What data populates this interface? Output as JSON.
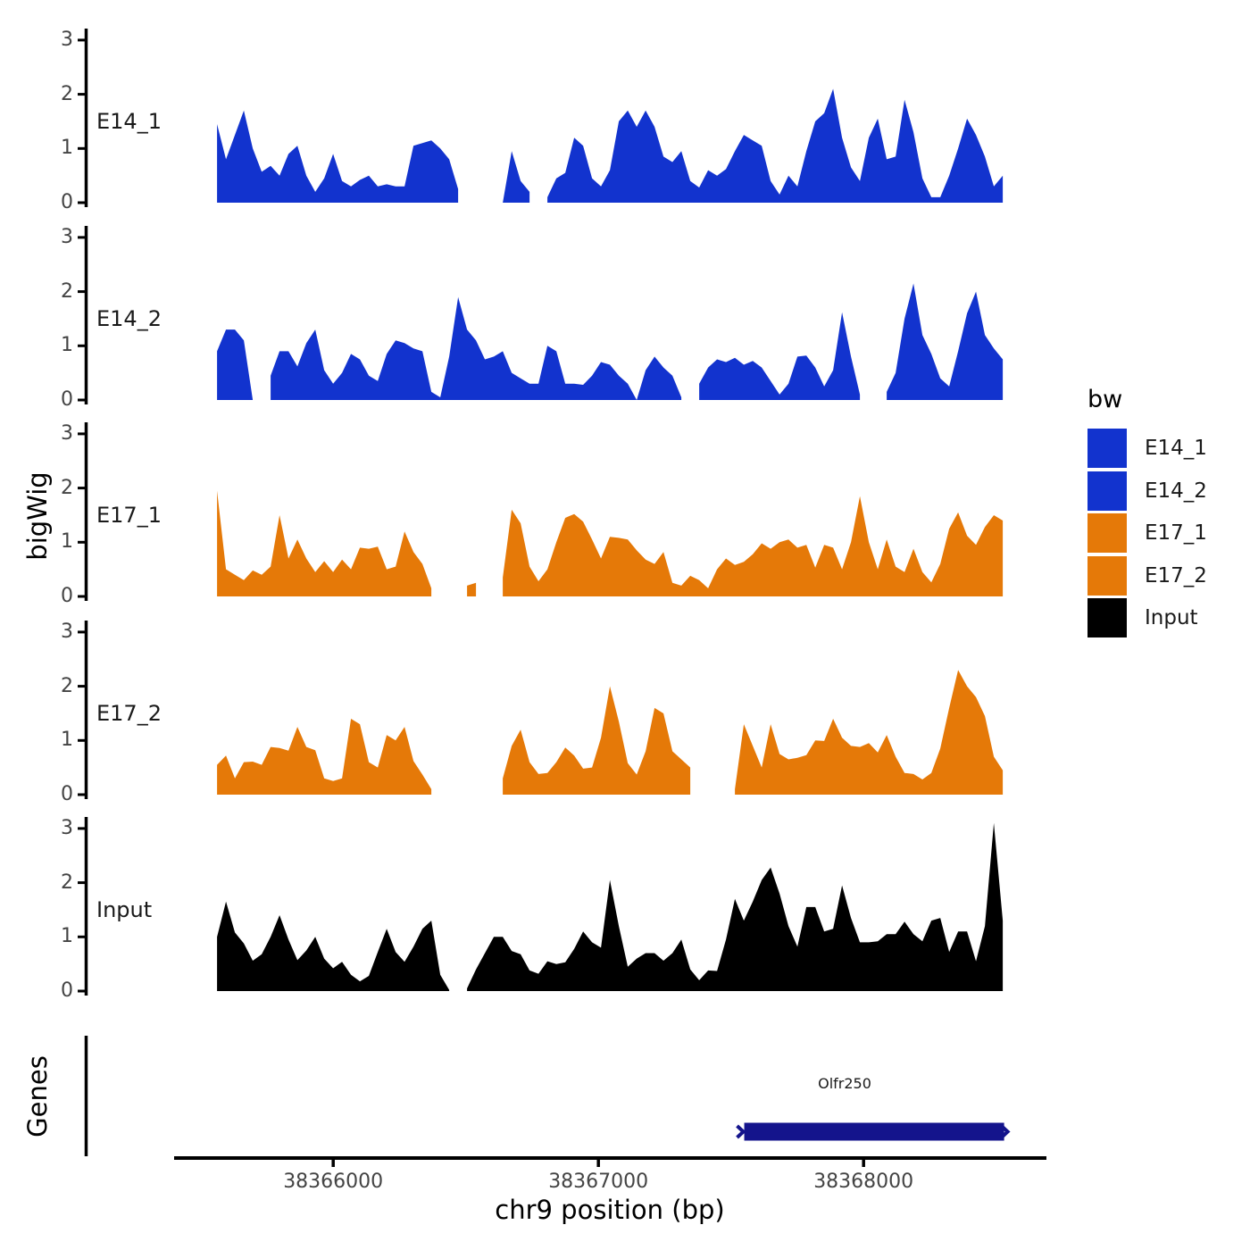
{
  "chart_data": {
    "type": "area",
    "title": "",
    "xlabel": "chr9 position (bp)",
    "ylabel": "bigWig",
    "chromosome": "chr9",
    "x_ticks": [
      38366000,
      38367000,
      38368000
    ],
    "x_range_bp": [
      38365400,
      38368690
    ],
    "track_ylim": [
      0,
      3
    ],
    "track_yticks": [
      "3",
      "2",
      "1",
      "0"
    ],
    "grid": "off",
    "sampling": {
      "start_bp": 38365562,
      "step_bp": 33.67,
      "note": "null = no coverage (gap)"
    },
    "style": {
      "background": "#ffffff",
      "axis_line_color": "#000000",
      "tick_text_color": "#444444",
      "blue": "#1233CE",
      "orange": "#E57908",
      "black": "#000000",
      "gene_navy": "#14148C"
    },
    "tracks": [
      {
        "id": "E14_1",
        "label": "E14_1",
        "color": "#1233CE",
        "values": [
          1.45,
          0.8,
          1.25,
          1.7,
          1.0,
          0.57,
          0.68,
          0.5,
          0.9,
          1.05,
          0.5,
          0.2,
          0.45,
          0.9,
          0.4,
          0.3,
          0.42,
          0.5,
          0.3,
          0.34,
          0.3,
          0.3,
          1.05,
          1.1,
          1.15,
          1.0,
          0.8,
          0.25,
          null,
          null,
          null,
          null,
          0,
          0.95,
          0.4,
          0.2,
          null,
          0.1,
          0.45,
          0.55,
          1.2,
          1.05,
          0.45,
          0.3,
          0.6,
          1.5,
          1.7,
          1.4,
          1.7,
          1.4,
          0.85,
          0.75,
          0.95,
          0.4,
          0.28,
          0.6,
          0.5,
          0.62,
          0.95,
          1.25,
          1.15,
          1.05,
          0.4,
          0.15,
          0.5,
          0.3,
          0.95,
          1.5,
          1.65,
          2.1,
          1.2,
          0.65,
          0.4,
          1.2,
          1.55,
          0.8,
          0.85,
          1.9,
          1.3,
          0.45,
          0.1,
          0.1,
          0.5,
          1.0,
          1.55,
          1.25,
          0.85,
          0.3,
          0.5
        ]
      },
      {
        "id": "E14_2",
        "label": "E14_2",
        "color": "#1233CE",
        "values": [
          0.9,
          1.3,
          1.3,
          1.1,
          0,
          null,
          0.45,
          0.9,
          0.9,
          0.62,
          1.05,
          1.3,
          0.55,
          0.3,
          0.5,
          0.85,
          0.75,
          0.45,
          0.35,
          0.85,
          1.1,
          1.05,
          0.95,
          0.9,
          0.15,
          0.05,
          0.8,
          1.9,
          1.3,
          1.1,
          0.75,
          0.8,
          0.9,
          0.5,
          0.4,
          0.3,
          0.3,
          1.0,
          0.9,
          0.3,
          0.3,
          0.28,
          0.45,
          0.7,
          0.65,
          0.45,
          0.3,
          0,
          0.55,
          0.8,
          0.6,
          0.45,
          0.05,
          null,
          0.3,
          0.6,
          0.75,
          0.7,
          0.78,
          0.65,
          0.72,
          0.6,
          0.35,
          0.1,
          0.3,
          0.8,
          0.82,
          0.6,
          0.25,
          0.55,
          1.62,
          0.8,
          0.1,
          null,
          null,
          0.15,
          0.5,
          1.5,
          2.15,
          1.2,
          0.85,
          0.4,
          0.25,
          0.9,
          1.6,
          2.0,
          1.2,
          0.95,
          0.75
        ]
      },
      {
        "id": "E17_1",
        "label": "E17_1",
        "color": "#E57908",
        "values": [
          1.95,
          0.5,
          0.4,
          0.3,
          0.48,
          0.4,
          0.55,
          1.5,
          0.7,
          1.05,
          0.7,
          0.45,
          0.65,
          0.45,
          0.68,
          0.5,
          0.9,
          0.88,
          0.92,
          0.5,
          0.55,
          1.2,
          0.82,
          0.6,
          0.15,
          null,
          null,
          null,
          0.2,
          0.25,
          null,
          null,
          0.35,
          1.6,
          1.35,
          0.55,
          0.28,
          0.5,
          1.0,
          1.45,
          1.52,
          1.38,
          1.05,
          0.7,
          1.1,
          1.08,
          1.05,
          0.85,
          0.68,
          0.6,
          0.82,
          0.25,
          0.2,
          0.38,
          0.3,
          0.15,
          0.5,
          0.7,
          0.58,
          0.64,
          0.78,
          0.98,
          0.88,
          1.0,
          1.05,
          0.9,
          0.95,
          0.53,
          0.95,
          0.9,
          0.5,
          1.0,
          1.85,
          1.0,
          0.5,
          1.05,
          0.55,
          0.45,
          0.88,
          0.45,
          0.26,
          0.6,
          1.25,
          1.55,
          1.12,
          0.95,
          1.28,
          1.5,
          1.4
        ]
      },
      {
        "id": "E17_2",
        "label": "E17_2",
        "color": "#E57908",
        "values": [
          0.55,
          0.72,
          0.3,
          0.6,
          0.61,
          0.55,
          0.88,
          0.86,
          0.81,
          1.25,
          0.88,
          0.82,
          0.3,
          0.25,
          0.3,
          1.4,
          1.3,
          0.6,
          0.5,
          1.1,
          1.0,
          1.25,
          0.62,
          0.37,
          0.1,
          null,
          null,
          null,
          null,
          null,
          null,
          null,
          0.3,
          0.9,
          1.2,
          0.6,
          0.38,
          0.4,
          0.6,
          0.87,
          0.72,
          0.48,
          0.5,
          1.05,
          2.0,
          1.35,
          0.58,
          0.37,
          0.8,
          1.6,
          1.5,
          0.8,
          0.65,
          0.5,
          null,
          null,
          null,
          null,
          0.1,
          1.3,
          0.9,
          0.5,
          1.3,
          0.75,
          0.65,
          0.68,
          0.73,
          1.0,
          0.99,
          1.4,
          1.05,
          0.9,
          0.88,
          0.95,
          0.78,
          1.1,
          0.7,
          0.4,
          0.38,
          0.28,
          0.4,
          0.85,
          1.6,
          2.3,
          2.0,
          1.8,
          1.45,
          0.7,
          0.45
        ]
      },
      {
        "id": "Input",
        "label": "Input",
        "color": "#000000",
        "values": [
          1.0,
          1.65,
          1.08,
          0.88,
          0.56,
          0.68,
          1.0,
          1.4,
          0.95,
          0.57,
          0.75,
          1.0,
          0.6,
          0.42,
          0.54,
          0.3,
          0.18,
          0.28,
          0.72,
          1.15,
          0.72,
          0.54,
          0.82,
          1.15,
          1.3,
          0.3,
          0.02,
          null,
          0.05,
          0.4,
          0.7,
          1.0,
          1.0,
          0.74,
          0.68,
          0.38,
          0.32,
          0.55,
          0.5,
          0.53,
          0.78,
          1.1,
          0.9,
          0.8,
          2.05,
          1.2,
          0.45,
          0.6,
          0.7,
          0.7,
          0.56,
          0.7,
          0.95,
          0.4,
          0.2,
          0.38,
          0.37,
          0.95,
          1.7,
          1.3,
          1.65,
          2.05,
          2.28,
          1.8,
          1.2,
          0.82,
          1.55,
          1.55,
          1.1,
          1.15,
          1.95,
          1.35,
          0.9,
          0.9,
          0.92,
          1.05,
          1.05,
          1.28,
          1.05,
          0.92,
          1.3,
          1.35,
          0.72,
          1.1,
          1.1,
          0.55,
          1.2,
          3.1,
          1.3
        ]
      }
    ],
    "genes_panel": {
      "label": "Genes",
      "genes": [
        {
          "name": "Olfr250",
          "start_bp": 38367550,
          "end_bp": 38368530,
          "strand": "+",
          "color": "#14148C"
        }
      ]
    },
    "legend": {
      "title": "bw",
      "position": "right",
      "items": [
        {
          "label": "E14_1",
          "color": "#1233CE"
        },
        {
          "label": "E14_2",
          "color": "#1233CE"
        },
        {
          "label": "E17_1",
          "color": "#E57908"
        },
        {
          "label": "E17_2",
          "color": "#E57908"
        },
        {
          "label": "Input",
          "color": "#000000"
        }
      ]
    }
  }
}
